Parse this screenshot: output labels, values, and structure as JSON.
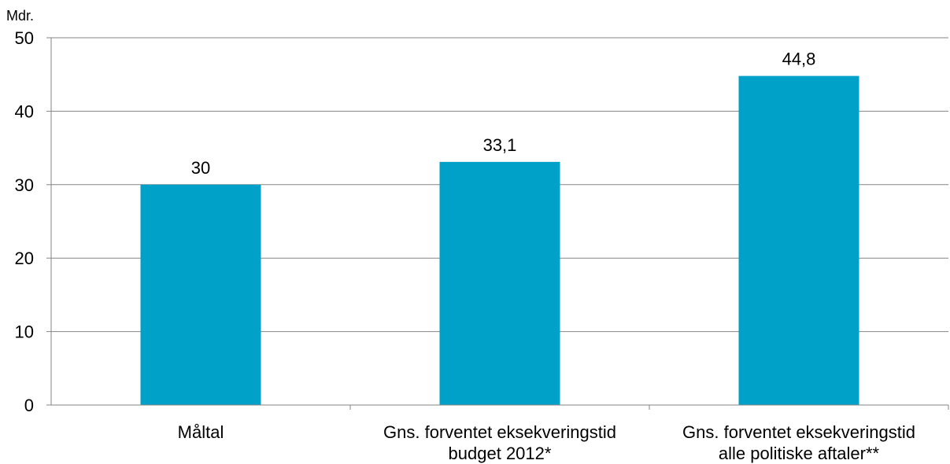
{
  "chart_data": {
    "type": "bar",
    "ylabel": "Mdr.",
    "categories": [
      [
        "Måltal"
      ],
      [
        "Gns. forventet eksekveringstid",
        "budget 2012*"
      ],
      [
        "Gns. forventet eksekveringstid",
        "alle politiske aftaler**"
      ]
    ],
    "values": [
      30,
      33.1,
      44.8
    ],
    "data_labels": [
      "30",
      "33,1",
      "44,8"
    ],
    "ylim": [
      0,
      50
    ],
    "yticks": [
      0,
      10,
      20,
      30,
      40,
      50
    ],
    "grid": true,
    "legend": "none",
    "colors": {
      "bar": "#00A1C9",
      "grid": "#868686",
      "axis": "#868686"
    }
  }
}
